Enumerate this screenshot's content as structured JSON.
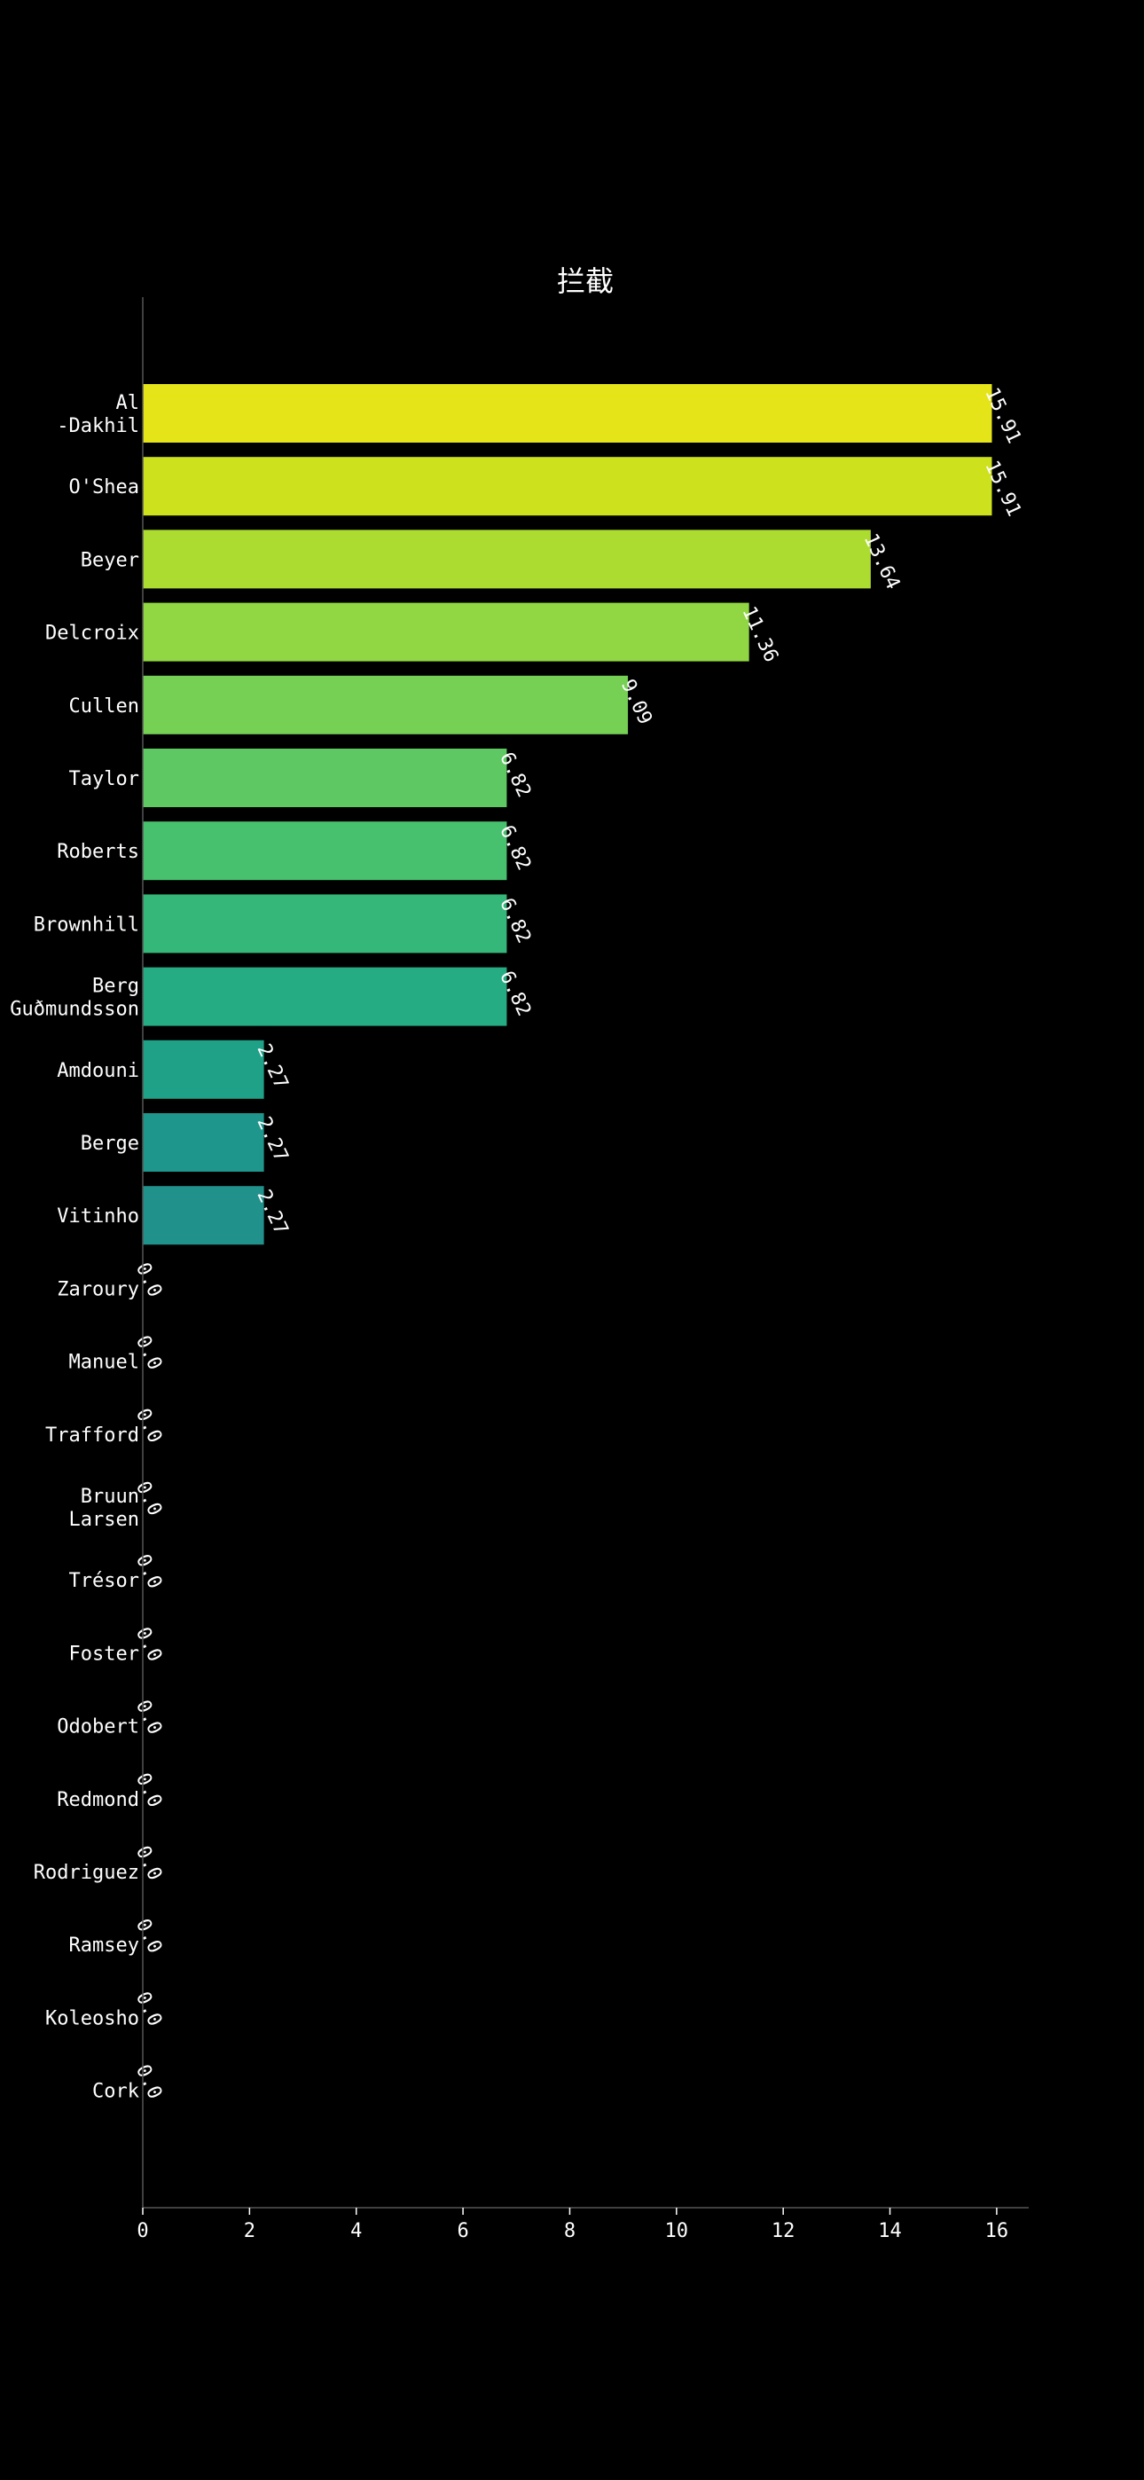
{
  "chart_data": {
    "type": "bar",
    "orientation": "horizontal",
    "title": "拦截",
    "xlabel": "",
    "ylabel": "",
    "xlim": [
      0,
      16.6
    ],
    "x_ticks": [
      0,
      2,
      4,
      6,
      8,
      10,
      12,
      14,
      16
    ],
    "grid": false,
    "legend": "none",
    "categories": [
      [
        "Al",
        "-Dakhil"
      ],
      [
        "O'Shea"
      ],
      [
        "Beyer"
      ],
      [
        "Delcroix"
      ],
      [
        "Cullen"
      ],
      [
        "Taylor"
      ],
      [
        "Roberts"
      ],
      [
        "Brownhill"
      ],
      [
        "Berg",
        "Guðmundsson"
      ],
      [
        "Amdouni"
      ],
      [
        "Berge"
      ],
      [
        "Vitinho"
      ],
      [
        "Zaroury"
      ],
      [
        "Manuel"
      ],
      [
        "Trafford"
      ],
      [
        "Bruun",
        "Larsen"
      ],
      [
        "Trésor"
      ],
      [
        "Foster"
      ],
      [
        "Odobert"
      ],
      [
        "Redmond"
      ],
      [
        "Rodriguez"
      ],
      [
        "Ramsey"
      ],
      [
        "Koleosho"
      ],
      [
        "Cork"
      ]
    ],
    "values": [
      15.91,
      15.91,
      13.64,
      11.36,
      9.09,
      6.82,
      6.82,
      6.82,
      6.82,
      2.27,
      2.27,
      2.27,
      0.0,
      0.0,
      0.0,
      0.0,
      0.0,
      0.0,
      0.0,
      0.0,
      0.0,
      0.0,
      0.0,
      0.0
    ],
    "value_labels": [
      "15.91",
      "15.91",
      "13.64",
      "11.36",
      "9.09",
      "6.82",
      "6.82",
      "6.82",
      "6.82",
      "2.27",
      "2.27",
      "2.27",
      "0.0",
      "0.0",
      "0.0",
      "0.0",
      "0.0",
      "0.0",
      "0.0",
      "0.0",
      "0.0",
      "0.0",
      "0.0",
      "0.0"
    ],
    "colors": [
      "#e5e419",
      "#cde11d",
      "#addc30",
      "#90d743",
      "#75d054",
      "#5ec962",
      "#48c16e",
      "#35b779",
      "#25ac82",
      "#1fa187",
      "#1f968b",
      "#21918c",
      "#23898e",
      "#25838e",
      "#287c8e",
      "#2a768e",
      "#2d708e",
      "#30698e",
      "#33638d",
      "#365c8d",
      "#39568c",
      "#3c4f8a",
      "#3f4889",
      "#424086"
    ],
    "background": "#000000",
    "text_color": "#ffffff",
    "axis_color": "#555555"
  }
}
